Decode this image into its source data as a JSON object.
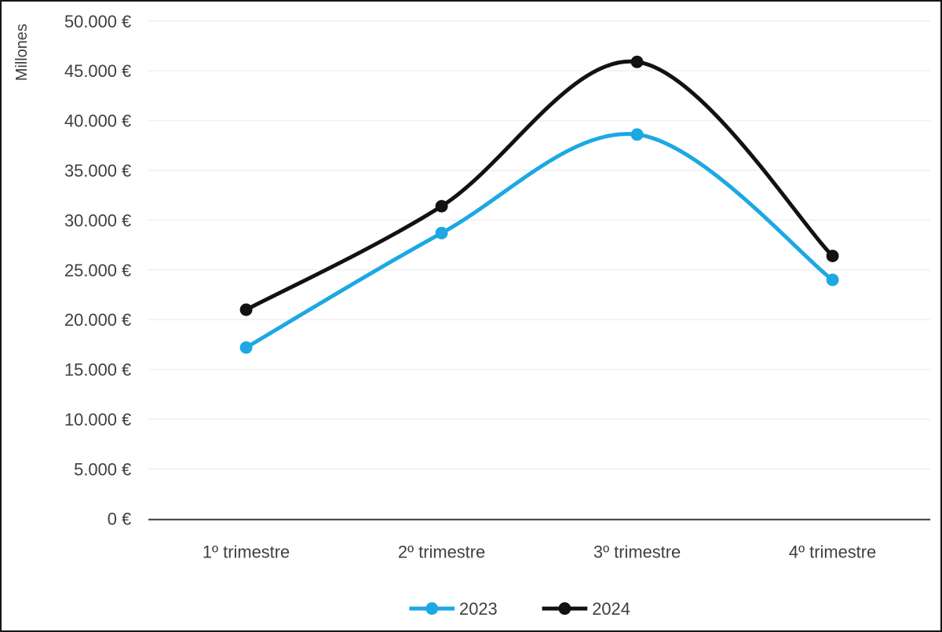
{
  "frame": {
    "background": "#ffffff",
    "border_color": "#161616"
  },
  "chart_data": {
    "type": "line",
    "title": "",
    "xlabel": "",
    "ylabel": "Millones",
    "unit": "€",
    "categories": [
      "1º trimestre",
      "2º trimestre",
      "3º trimestre",
      "4º trimestre"
    ],
    "series": [
      {
        "name": "2023",
        "color": "#1CA8E3",
        "values": [
          17200,
          28700,
          38600,
          24000
        ]
      },
      {
        "name": "2024",
        "color": "#121212",
        "values": [
          21000,
          31400,
          45900,
          26400
        ]
      }
    ],
    "y_axis": {
      "min": 0,
      "max": 50000,
      "step": 5000,
      "tick_labels": [
        "0 €",
        "5.000 €",
        "10.000 €",
        "15.000 €",
        "20.000 €",
        "25.000 €",
        "30.000 €",
        "35.000 €",
        "40.000 €",
        "45.000 €",
        "50.000 €"
      ]
    },
    "grid": true,
    "line_smoothing": true,
    "marker": "circle",
    "legend_position": "bottom",
    "colors": {
      "gridline": "#efefef",
      "axis": "#3a3a3a",
      "text": "#3f3f3f"
    }
  }
}
